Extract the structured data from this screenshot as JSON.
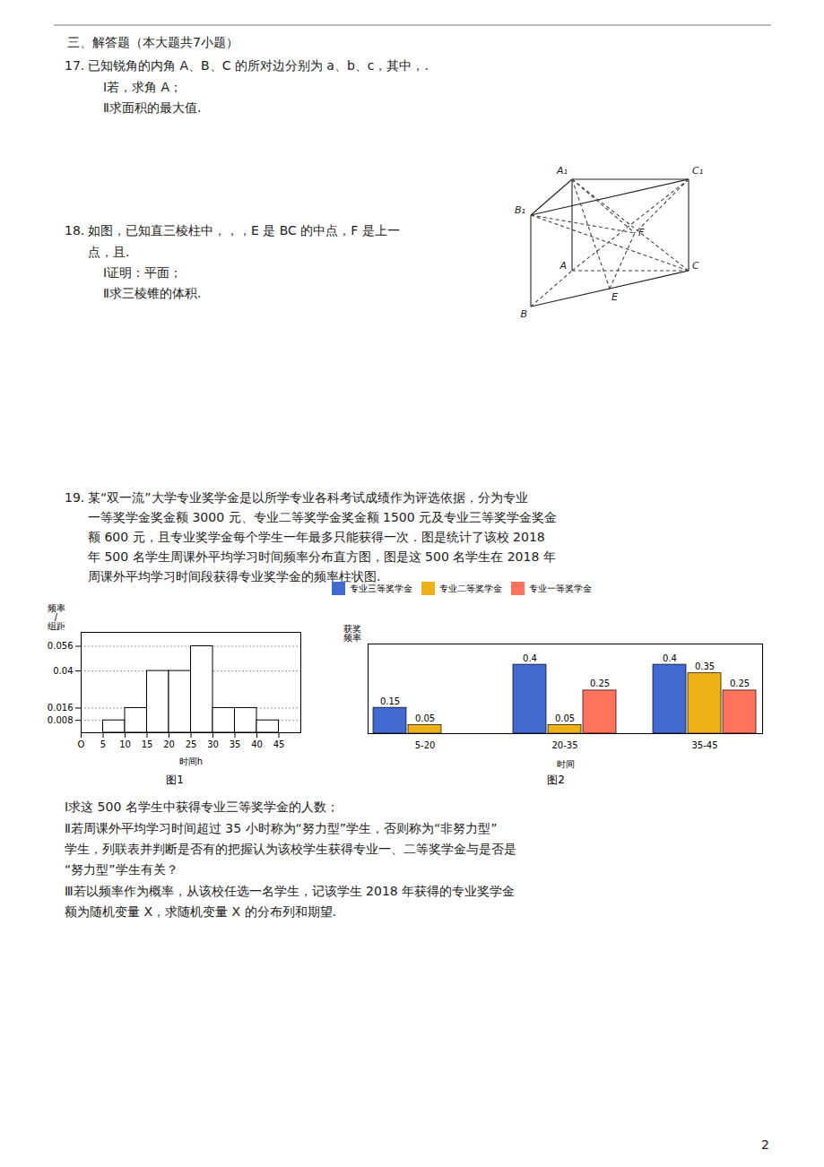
{
  "annotations": [
    "三、解答题（本大题共7小题）",
    "17.",
    "已知锐角的内角 A、B、C 的所对边分别为 a、b、c，其中，.",
    "Ⅰ若，求角 A；",
    "Ⅱ求面积的最大值.",
    "18.",
    "如图，已知直三棱柱中，，，E 是 BC 的中点，F 是上一",
    "点，且.",
    "Ⅰ证明：平面；",
    "Ⅱ求三棱锥的体积.",
    "A₁",
    "B₁",
    "C₁",
    "A",
    "B",
    "C",
    "E",
    "F",
    "19.",
    "某“双一流”大学专业奖学金是以所学专业各科考试成绩作为评选依据，分为专业",
    "一等奖学金奖金额 3000 元、专业二等奖学金奖金额 1500 元及专业三等奖学金奖金",
    "额 600 元，且专业奖学金每个学生一年最多只能获得一次．图是统计了该校 2018",
    "年 500 名学生周课外平均学习时间频率分布直方图，图是这 500 名学生在 2018 年",
    "周课外平均学习时间段获得专业奖学金的频率柱状图.",
    "Ⅰ求这 500 名学生中获得专业三等奖学金的人数；",
    "Ⅱ若周课外平均学习时间超过 35 小时称为“努力型”学生，否则称为“非努力型”",
    "学生，列联表并判断是否有的把握认为该校学生获得专业一、二等奖学金与是否是",
    "“努力型”学生有关？",
    "Ⅲ若以频率作为概率，从该校任选一名学生，记该学生 2018 年获得的专业奖学金",
    "额为随机变量 X，求随机变量 X 的分布列和期望.",
    "2"
  ],
  "chart_data": [
    {
      "type": "histogram",
      "title": "图1",
      "bins": [
        5,
        10,
        15,
        20,
        25,
        30,
        35,
        40,
        45
      ],
      "values": [
        0.008,
        0.016,
        0.04,
        0.04,
        0.056,
        0.016,
        0.016,
        0.008
      ],
      "xlim": [
        0,
        50
      ],
      "xticks": [
        {
          "value": 0,
          "label": "O"
        },
        5,
        10,
        15,
        20,
        25,
        30,
        35,
        40,
        45
      ],
      "ylim": [
        0,
        0.065
      ],
      "yticks": [
        0.008,
        0.016,
        0.04,
        0.056
      ],
      "grid": true,
      "xlabel": "时间h",
      "ylabel": "频率\n/\n组距"
    },
    {
      "type": "bar",
      "title": "图2",
      "categories": [
        "5-20",
        "20-35",
        "35-45"
      ],
      "series": [
        {
          "name": "专业三等奖学金",
          "values": [
            0.15,
            0.4,
            0.4
          ]
        },
        {
          "name": "专业二等奖学金",
          "values": [
            0.05,
            0.05,
            0.35
          ]
        },
        {
          "name": "专业一等奖学金",
          "values": [
            null,
            0.25,
            0.25
          ]
        }
      ],
      "ylim": [
        0,
        0.52
      ],
      "xlabel": "时间",
      "ylabel": "获奖\n频率",
      "data_labels": true,
      "tick_labels": "x",
      "legend": "top"
    }
  ]
}
